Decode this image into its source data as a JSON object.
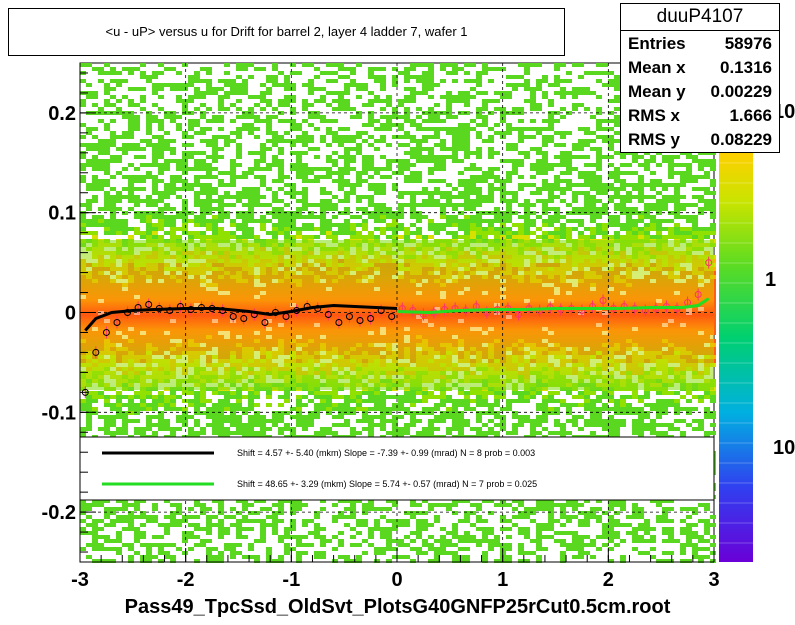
{
  "title": "<u - uP>       versus   u for Drift for barrel 2, layer 4 ladder 7, wafer 1",
  "stats": {
    "name": "duuP4107",
    "rows": [
      {
        "key": "Entries",
        "value": "58976"
      },
      {
        "key": "Mean x",
        "value": "0.1316"
      },
      {
        "key": "Mean y",
        "value": "0.00229"
      },
      {
        "key": "RMS x",
        "value": "1.666"
      },
      {
        "key": "RMS y",
        "value": "0.08229"
      }
    ]
  },
  "xlabel": "Pass49_TpcSsd_OldSvt_PlotsG40GNFP25rCut0.5cm.root",
  "legend": [
    {
      "color": "#000000",
      "text": "Shift =    4.57 +- 5.40 (mkm) Slope =    -7.39 +- 0.99 (mrad)  N = 8 prob = 0.003"
    },
    {
      "color": "#22dd22",
      "text": "Shift =    48.65 +- 3.29 (mkm) Slope =     5.74 +- 0.57 (mrad)  N = 7 prob = 0.025"
    }
  ],
  "colorbar": {
    "labels": [
      "10",
      "1",
      "10"
    ]
  },
  "colors": {
    "black_fit": "#000000",
    "green_fit": "#22dd22",
    "profile": "#ff3366"
  },
  "chart_data": {
    "type": "heatmap",
    "xlim": [
      -3,
      3
    ],
    "ylim": [
      -0.25,
      0.25
    ],
    "x_ticks": [
      "-3",
      "-2",
      "-1",
      "0",
      "1",
      "2",
      "3"
    ],
    "x_tick_values": [
      -3,
      -2,
      -1,
      0,
      1,
      2,
      3
    ],
    "y_ticks": [
      "-0.2",
      "-0.1",
      "0",
      "0.1",
      "0.2"
    ],
    "y_tick_values": [
      -0.2,
      -0.1,
      0,
      0.1,
      0.2
    ],
    "grid": true,
    "colorbar_scale": "log",
    "profile_points": {
      "x": [
        -2.95,
        -2.85,
        -2.75,
        -2.65,
        -2.55,
        -2.45,
        -2.35,
        -2.25,
        -2.15,
        -2.05,
        -1.95,
        -1.85,
        -1.75,
        -1.65,
        -1.55,
        -1.45,
        -1.35,
        -1.25,
        -1.15,
        -1.05,
        -0.95,
        -0.85,
        -0.75,
        -0.65,
        -0.55,
        -0.45,
        -0.35,
        -0.25,
        -0.15,
        -0.05,
        0.05,
        0.15,
        0.25,
        0.35,
        0.45,
        0.55,
        0.65,
        0.75,
        0.85,
        0.95,
        1.05,
        1.15,
        1.25,
        1.35,
        1.45,
        1.55,
        1.65,
        1.75,
        1.85,
        1.95,
        2.05,
        2.15,
        2.25,
        2.35,
        2.45,
        2.55,
        2.65,
        2.75,
        2.85,
        2.95
      ],
      "y": [
        -0.08,
        -0.04,
        -0.02,
        -0.01,
        0.0,
        0.005,
        0.008,
        0.004,
        0.002,
        0.006,
        0.003,
        0.005,
        0.004,
        0.002,
        -0.004,
        -0.006,
        -0.002,
        -0.01,
        0.0,
        -0.004,
        0.002,
        0.006,
        0.004,
        -0.002,
        -0.01,
        -0.004,
        -0.008,
        -0.006,
        0.002,
        -0.004,
        0.004,
        0.002,
        -0.002,
        0.0,
        0.003,
        0.004,
        0.002,
        0.006,
        0.0,
        0.003,
        0.004,
        -0.002,
        0.004,
        0.002,
        0.005,
        0.003,
        0.004,
        0.002,
        0.006,
        0.012,
        0.004,
        0.006,
        0.004,
        0.002,
        0.004,
        0.006,
        0.004,
        0.01,
        0.018,
        0.05
      ]
    },
    "fit_black": {
      "x": [
        -2.95,
        -2.85,
        -2.7,
        -2.5,
        -2.3,
        -2.0,
        -1.7,
        -1.4,
        -1.2,
        -1.0,
        -0.8,
        -0.6,
        -0.4,
        -0.2,
        0.0
      ],
      "y": [
        -0.018,
        -0.006,
        0.0,
        0.002,
        0.003,
        0.004,
        0.004,
        0.001,
        -0.002,
        0.001,
        0.005,
        0.007,
        0.006,
        0.005,
        0.004
      ]
    },
    "fit_green": {
      "x": [
        0.0,
        0.3,
        0.6,
        0.9,
        1.2,
        1.5,
        1.8,
        2.1,
        2.4,
        2.7,
        2.85,
        2.95
      ],
      "y": [
        0.001,
        0.0,
        0.002,
        0.003,
        0.003,
        0.004,
        0.004,
        0.004,
        0.005,
        0.005,
        0.007,
        0.014
      ]
    }
  }
}
